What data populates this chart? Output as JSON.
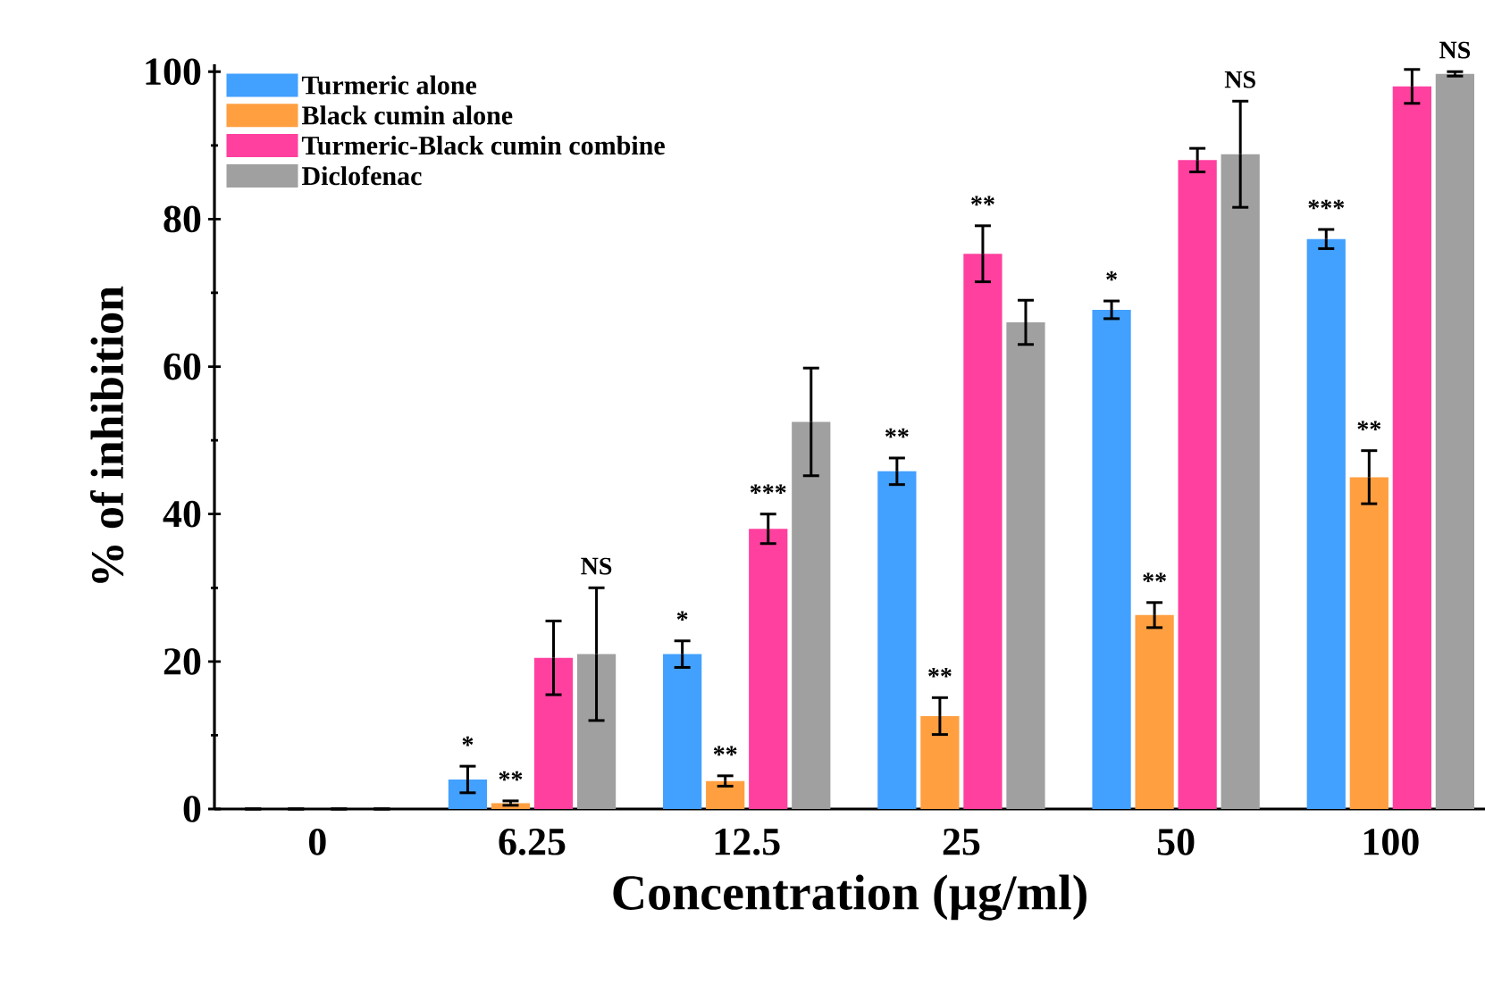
{
  "chart_data": {
    "type": "bar",
    "xlabel": "Concentration (µg/ml)",
    "ylabel": "% of inhibition",
    "categories": [
      "0",
      "6.25",
      "12.5",
      "25",
      "50",
      "100"
    ],
    "ylim": [
      0,
      101
    ],
    "yticks": [
      0,
      20,
      40,
      60,
      80,
      100
    ],
    "legend": "top left",
    "grid": false,
    "series": [
      {
        "name": "Turmeric alone",
        "color": "#42a0ff",
        "values": [
          0,
          4,
          21,
          45.8,
          67.7,
          77.3
        ],
        "errors": [
          null,
          1.8,
          1.8,
          1.8,
          1.2,
          1.3
        ],
        "value_labels": [
          null,
          "*",
          "*",
          "**",
          "*",
          "***"
        ]
      },
      {
        "name": "Black cumin alone",
        "color": "#ff9f40",
        "values": [
          0,
          0.8,
          3.8,
          12.6,
          26.3,
          45
        ],
        "errors": [
          null,
          0.3,
          0.7,
          2.5,
          1.7,
          3.6
        ],
        "value_labels": [
          null,
          "**",
          "**",
          "**",
          "**",
          "**"
        ]
      },
      {
        "name": "Turmeric-Black cumin combine",
        "color": "#ff409f",
        "values": [
          0,
          20.5,
          38,
          75.3,
          88,
          98
        ],
        "errors": [
          null,
          5,
          2,
          3.8,
          1.6,
          2.3
        ],
        "value_labels": [
          null,
          null,
          "***",
          "**",
          null,
          null
        ]
      },
      {
        "name": "Diclofenac",
        "color": "#a0a0a0",
        "values": [
          0,
          21,
          52.5,
          66,
          88.8,
          99.7
        ],
        "errors": [
          null,
          9,
          7.3,
          3,
          7.2,
          0.3
        ],
        "value_labels": [
          null,
          "NS",
          null,
          null,
          "NS",
          "NS"
        ]
      }
    ]
  }
}
